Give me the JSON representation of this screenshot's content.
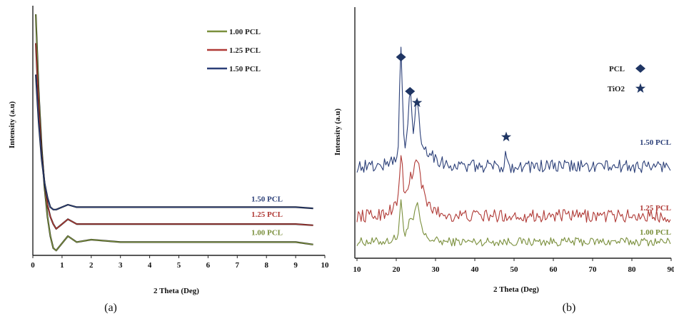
{
  "colors": {
    "c100": "#7a8f3c",
    "c125": "#b03a36",
    "c150": "#2b3f78",
    "marker": "#1f3563",
    "axis": "#222222"
  },
  "chart_data": [
    {
      "type": "line",
      "panel_label": "(a)",
      "xlabel": "2 Theta (Deg)",
      "ylabel": "Intensity (a.u)",
      "xlim": [
        0,
        10
      ],
      "xticks": [
        "0",
        "1",
        "2",
        "3",
        "4",
        "5",
        "6",
        "7",
        "8",
        "9",
        "10"
      ],
      "legend": {
        "placement": "top-right",
        "entries": [
          "1.00 PCL",
          "1.25 PCL",
          "1.50 PCL"
        ]
      },
      "series_labels": [
        "1.50 PCL",
        "1.25 PCL",
        "1.00 PCL"
      ],
      "series": [
        {
          "name": "1.00 PCL",
          "color_key": "c100",
          "x": [
            0.1,
            0.2,
            0.3,
            0.4,
            0.5,
            0.6,
            0.7,
            0.8,
            1.0,
            1.2,
            1.5,
            2.0,
            3,
            4,
            5,
            6,
            7,
            8,
            9,
            9.6
          ],
          "y": [
            100,
            68,
            45,
            28,
            16,
            8,
            3,
            2,
            5,
            8,
            5.5,
            6.5,
            5.5,
            5.5,
            5.5,
            5.5,
            5.5,
            5.5,
            5.5,
            4.5
          ]
        },
        {
          "name": "1.25 PCL",
          "color_key": "c125",
          "x": [
            0.1,
            0.2,
            0.3,
            0.4,
            0.5,
            0.6,
            0.7,
            0.8,
            1.0,
            1.2,
            1.5,
            2.0,
            3,
            4,
            5,
            6,
            7,
            8,
            9,
            9.6
          ],
          "y": [
            88,
            62,
            42,
            30,
            21,
            16,
            13,
            11,
            13,
            15,
            13,
            13,
            13,
            13,
            13,
            13,
            13,
            13,
            13,
            12.5
          ]
        },
        {
          "name": "1.50 PCL",
          "color_key": "c150",
          "x": [
            0.1,
            0.2,
            0.3,
            0.4,
            0.5,
            0.6,
            0.7,
            0.8,
            1.0,
            1.2,
            1.5,
            2.0,
            3,
            4,
            5,
            6,
            7,
            8,
            9,
            9.6
          ],
          "y": [
            75,
            55,
            40,
            30,
            24,
            20,
            19,
            19,
            20,
            21,
            20,
            20,
            20,
            20,
            20,
            20,
            20,
            20,
            20,
            19.5
          ]
        }
      ]
    },
    {
      "type": "line",
      "panel_label": "(b)",
      "xlabel": "2 Theta (Deg)",
      "ylabel": "Intensity (a.u)",
      "xlim": [
        10,
        90
      ],
      "xticks": [
        "10",
        "20",
        "30",
        "40",
        "50",
        "60",
        "70",
        "80",
        "90"
      ],
      "legend": {
        "placement": "top-right",
        "entries": [
          {
            "label": "PCL",
            "marker": "diamond"
          },
          {
            "label": "TiO2",
            "marker": "star"
          }
        ]
      },
      "series_labels": [
        "1.50 PCL",
        "1.25 PCL",
        "1.00 PCL"
      ],
      "peak_markers": [
        {
          "marker": "diamond",
          "x": 21.2
        },
        {
          "marker": "diamond",
          "x": 23.5
        },
        {
          "marker": "star",
          "x": 25.3
        },
        {
          "marker": "star",
          "x": 48.0
        }
      ],
      "series": [
        {
          "name": "1.00 PCL",
          "color_key": "c100",
          "baseline": 5,
          "peaks": [
            [
              21.2,
              15,
              0.5
            ],
            [
              25.3,
              12,
              1.0
            ],
            [
              23.5,
              4,
              0.6
            ]
          ],
          "hump": [
            24,
            5,
            4
          ],
          "noise": 2
        },
        {
          "name": "1.25 PCL",
          "color_key": "c125",
          "baseline": 17,
          "peaks": [
            [
              21.2,
              22,
              0.5
            ],
            [
              25.3,
              16,
              1.3
            ],
            [
              23.5,
              6,
              0.6
            ]
          ],
          "hump": [
            24,
            10,
            5
          ],
          "noise": 3
        },
        {
          "name": "1.50 PCL",
          "color_key": "c150",
          "baseline": 40,
          "peaks": [
            [
              21.2,
              48,
              0.5
            ],
            [
              23.5,
              25,
              0.6
            ],
            [
              25.3,
              22,
              0.6
            ],
            [
              48.0,
              7,
              0.35
            ]
          ],
          "hump": [
            25,
            11,
            5
          ],
          "noise": 3
        }
      ]
    }
  ]
}
